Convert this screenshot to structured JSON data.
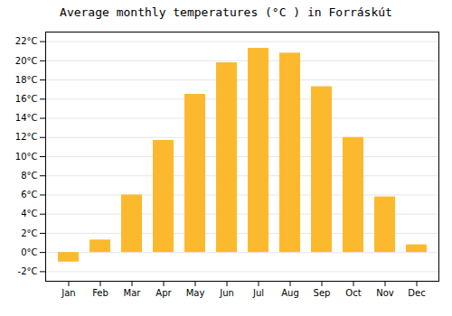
{
  "chart_data": {
    "type": "bar",
    "title": "Average monthly temperatures (°C ) in Forráskút",
    "categories": [
      "Jan",
      "Feb",
      "Mar",
      "Apr",
      "May",
      "Jun",
      "Jul",
      "Aug",
      "Sep",
      "Oct",
      "Nov",
      "Dec"
    ],
    "values": [
      -1.0,
      1.3,
      6.0,
      11.7,
      16.5,
      19.8,
      21.3,
      20.8,
      17.3,
      12.0,
      5.8,
      0.8
    ],
    "color": "#FDB92E",
    "ylim": [
      -3,
      23
    ],
    "yticks": [
      {
        "value": -2,
        "label": "-2°C"
      },
      {
        "value": 0,
        "label": "0°C"
      },
      {
        "value": 2,
        "label": "2°C"
      },
      {
        "value": 4,
        "label": "4°C"
      },
      {
        "value": 6,
        "label": "6°C"
      },
      {
        "value": 8,
        "label": "8°C"
      },
      {
        "value": 10,
        "label": "10°C"
      },
      {
        "value": 12,
        "label": "12°C"
      },
      {
        "value": 14,
        "label": "14°C"
      },
      {
        "value": 16,
        "label": "16°C"
      },
      {
        "value": 18,
        "label": "18°C"
      },
      {
        "value": 20,
        "label": "20°C"
      },
      {
        "value": 22,
        "label": "22°C"
      }
    ],
    "grid": true
  }
}
